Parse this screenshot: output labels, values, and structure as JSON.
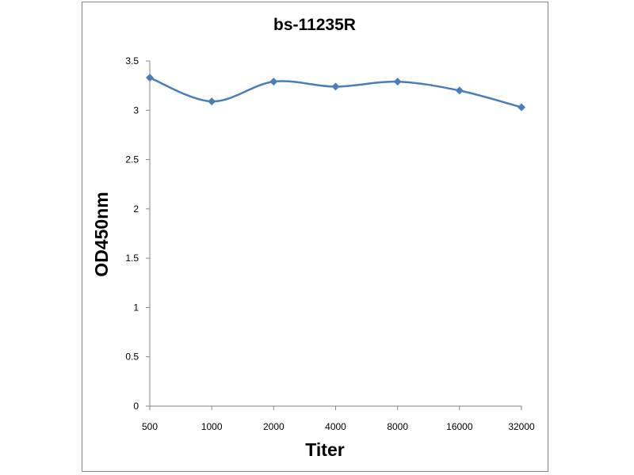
{
  "chart_data": {
    "type": "line",
    "title": "bs-11235R",
    "xlabel": "Titer",
    "ylabel": "OD450nm",
    "categories": [
      "500",
      "1000",
      "2000",
      "4000",
      "8000",
      "16000",
      "32000"
    ],
    "series": [
      {
        "values": [
          3.33,
          3.09,
          3.29,
          3.24,
          3.29,
          3.2,
          3.03
        ],
        "color": "#4a7ebb",
        "marker": "diamond"
      }
    ],
    "ylim": [
      0,
      3.5
    ],
    "yticks": [
      "0",
      "0.5",
      "1",
      "1.5",
      "2",
      "2.5",
      "3",
      "3.5"
    ],
    "ytick_values": [
      0,
      0.5,
      1,
      1.5,
      2,
      2.5,
      3,
      3.5
    ],
    "grid": false,
    "legend": "none"
  }
}
